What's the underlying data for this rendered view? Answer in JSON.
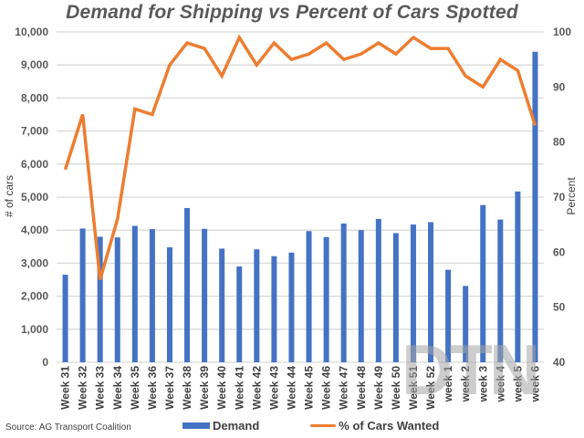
{
  "chart_data": {
    "type": "bar",
    "title": "Demand for Shipping vs Percent of Cars Spotted",
    "source": "Source: AG Transport Coalition",
    "watermark": "DTN",
    "categories": [
      "Week 31",
      "Week 32",
      "Week 33",
      "Week 34",
      "Week 35",
      "Week 36",
      "Week 37",
      "Week 38",
      "Week 39",
      "Week 40",
      "Week 41",
      "Week 42",
      "Week 43",
      "Week 44",
      "Week 45",
      "Week 46",
      "Week 47",
      "Week 48",
      "Week 49",
      "Week 50",
      "Week 51",
      "Week 52",
      "week 1",
      "week 2",
      "week 3",
      "week 4",
      "week 5",
      "week 6"
    ],
    "series": [
      {
        "name": "Demand",
        "type": "bar",
        "axis": "left",
        "color": "#4472C4",
        "values": [
          2650,
          4050,
          3800,
          3780,
          4130,
          4030,
          3480,
          4670,
          4040,
          3440,
          2900,
          3420,
          3210,
          3320,
          3970,
          3790,
          4200,
          4000,
          4340,
          3910,
          4170,
          4240,
          2800,
          2310,
          4760,
          4320,
          5170,
          9400
        ]
      },
      {
        "name": "% of Cars Wanted",
        "type": "line",
        "axis": "right",
        "color": "#ED7D31",
        "values": [
          75,
          85,
          55,
          66,
          86,
          85,
          94,
          98,
          97,
          92,
          99,
          94,
          98,
          95,
          96,
          98,
          95,
          96,
          98,
          96,
          99,
          97,
          97,
          92,
          90,
          95,
          93,
          83
        ]
      }
    ],
    "ylabel": "# of cars",
    "ylim": [
      0,
      10000
    ],
    "yticks": [
      "0",
      "1,000",
      "2,000",
      "3,000",
      "4,000",
      "5,000",
      "6,000",
      "7,000",
      "8,000",
      "9,000",
      "10,000"
    ],
    "ytick_values": [
      0,
      1000,
      2000,
      3000,
      4000,
      5000,
      6000,
      7000,
      8000,
      9000,
      10000
    ],
    "y2label": "Percent",
    "y2lim": [
      40,
      100
    ],
    "y2ticks": [
      "40",
      "50",
      "60",
      "70",
      "80",
      "90",
      "100"
    ],
    "y2tick_values": [
      40,
      50,
      60,
      70,
      80,
      90,
      100
    ],
    "grid": true,
    "legend_position": "bottom"
  }
}
